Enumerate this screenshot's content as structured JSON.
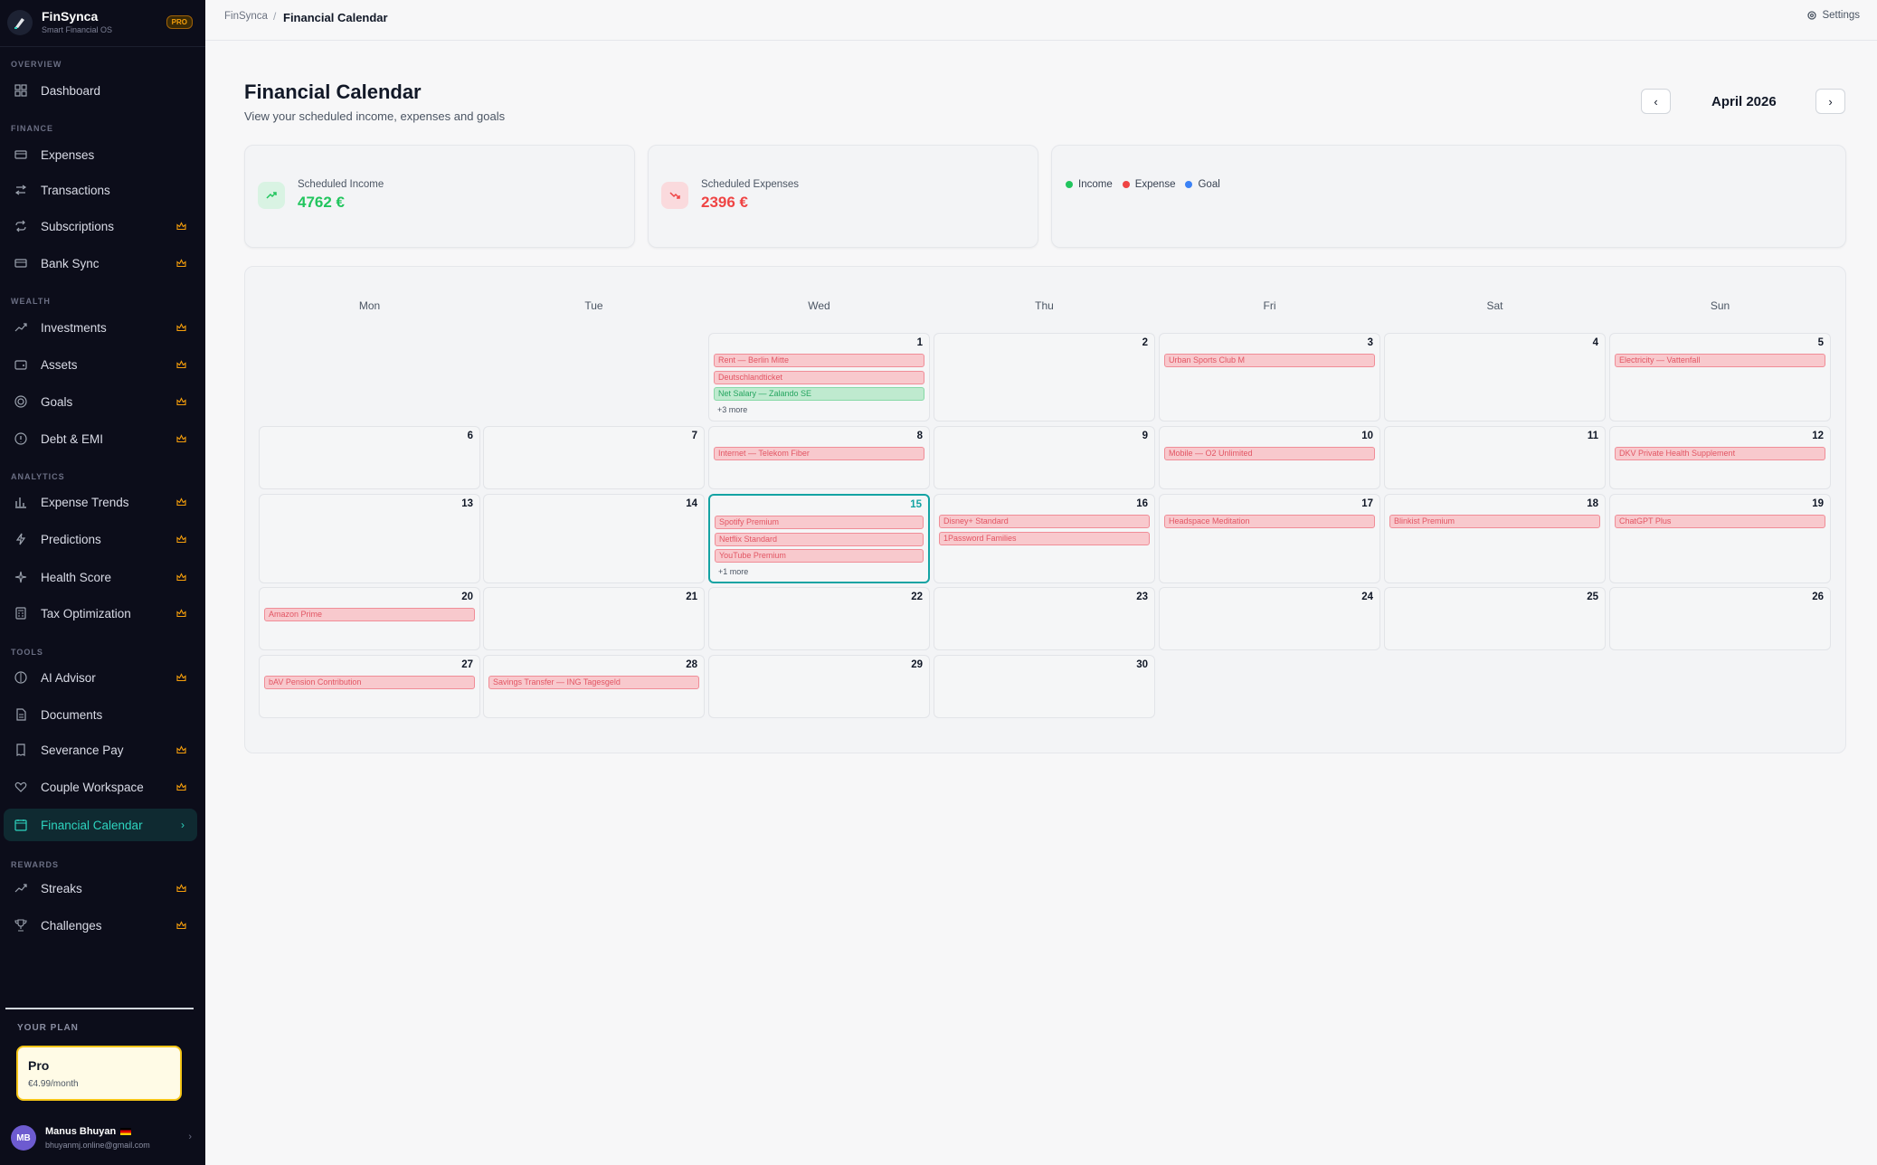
{
  "brand": {
    "name": "FinSynca",
    "tagline": "Smart Financial OS",
    "badge": "PRO"
  },
  "sidebar": {
    "sections": {
      "overview": "OVERVIEW",
      "finance": "FINANCE",
      "wealth": "WEALTH",
      "analytics": "ANALYTICS",
      "tools": "TOOLS",
      "rewards": "REWARDS"
    },
    "items": [
      {
        "label": "Dashboard",
        "icon": "grid-icon",
        "pro": false
      },
      {
        "label": "Expenses",
        "icon": "card-icon",
        "pro": false
      },
      {
        "label": "Transactions",
        "icon": "transfer-icon",
        "pro": false
      },
      {
        "label": "Subscriptions",
        "icon": "repeat-icon",
        "pro": true
      },
      {
        "label": "Bank Sync",
        "icon": "bank-card-icon",
        "pro": true
      },
      {
        "label": "Investments",
        "icon": "trend-up-icon",
        "pro": true
      },
      {
        "label": "Assets",
        "icon": "wallet-icon",
        "pro": true
      },
      {
        "label": "Goals",
        "icon": "target-icon",
        "pro": true
      },
      {
        "label": "Debt & EMI",
        "icon": "alert-circle-icon",
        "pro": true
      },
      {
        "label": "Expense Trends",
        "icon": "bar-chart-icon",
        "pro": true
      },
      {
        "label": "Predictions",
        "icon": "bolt-icon",
        "pro": true
      },
      {
        "label": "Health Score",
        "icon": "sparkle-icon",
        "pro": true
      },
      {
        "label": "Tax Optimization",
        "icon": "calculator-icon",
        "pro": true
      },
      {
        "label": "AI Advisor",
        "icon": "brain-icon",
        "pro": true
      },
      {
        "label": "Documents",
        "icon": "document-icon",
        "pro": false
      },
      {
        "label": "Severance Pay",
        "icon": "receipt-icon",
        "pro": true
      },
      {
        "label": "Couple Workspace",
        "icon": "heart-icon",
        "pro": true
      },
      {
        "label": "Financial Calendar",
        "icon": "calendar-icon",
        "pro": false,
        "active": true
      },
      {
        "label": "Streaks",
        "icon": "trend-up-icon",
        "pro": true
      },
      {
        "label": "Challenges",
        "icon": "trophy-icon",
        "pro": true
      }
    ],
    "plan": {
      "label": "YOUR PLAN",
      "name": "Pro",
      "price": "€4.99/month"
    },
    "user": {
      "initials": "MB",
      "name": "Manus Bhuyan",
      "email": "bhuyanmj.online@gmail.com"
    }
  },
  "topbar": {
    "breadcrumb_root": "FinSynca",
    "breadcrumb_sep": "/",
    "breadcrumb_current": "Financial Calendar",
    "settings": "Settings"
  },
  "header": {
    "title": "Financial Calendar",
    "subtitle": "View your scheduled income, expenses and goals",
    "month": "April 2026"
  },
  "summary": {
    "income_label": "Scheduled Income",
    "income_value": "4762 €",
    "expense_label": "Scheduled Expenses",
    "expense_value": "2396 €",
    "legend": [
      {
        "label": "Income",
        "color": "#22c55e"
      },
      {
        "label": "Expense",
        "color": "#ef4444"
      },
      {
        "label": "Goal",
        "color": "#3b82f6"
      }
    ]
  },
  "calendar": {
    "weekdays": [
      "Mon",
      "Tue",
      "Wed",
      "Thu",
      "Fri",
      "Sat",
      "Sun"
    ],
    "today": 15,
    "days": [
      {
        "day": "1",
        "events": [
          {
            "label": "Rent — Berlin Mitte",
            "type": "expense"
          },
          {
            "label": "Deutschlandticket",
            "type": "expense"
          },
          {
            "label": "Net Salary — Zalando SE",
            "type": "income"
          }
        ],
        "more": "+3 more"
      },
      {
        "day": "2",
        "events": []
      },
      {
        "day": "3",
        "events": [
          {
            "label": "Urban Sports Club M",
            "type": "expense"
          }
        ]
      },
      {
        "day": "4",
        "events": []
      },
      {
        "day": "5",
        "events": [
          {
            "label": "Electricity — Vattenfall",
            "type": "expense"
          }
        ]
      },
      {
        "day": "6",
        "events": []
      },
      {
        "day": "7",
        "events": []
      },
      {
        "day": "8",
        "events": [
          {
            "label": "Internet — Telekom Fiber",
            "type": "expense"
          }
        ]
      },
      {
        "day": "9",
        "events": []
      },
      {
        "day": "10",
        "events": [
          {
            "label": "Mobile — O2 Unlimited",
            "type": "expense"
          }
        ]
      },
      {
        "day": "11",
        "events": []
      },
      {
        "day": "12",
        "events": [
          {
            "label": "DKV Private Health Supplement",
            "type": "expense"
          }
        ]
      },
      {
        "day": "13",
        "events": []
      },
      {
        "day": "14",
        "events": []
      },
      {
        "day": "15",
        "events": [
          {
            "label": "Spotify Premium",
            "type": "expense"
          },
          {
            "label": "Netflix Standard",
            "type": "expense"
          },
          {
            "label": "YouTube Premium",
            "type": "expense"
          }
        ],
        "more": "+1 more"
      },
      {
        "day": "16",
        "events": [
          {
            "label": "Disney+ Standard",
            "type": "expense"
          },
          {
            "label": "1Password Families",
            "type": "expense"
          }
        ]
      },
      {
        "day": "17",
        "events": [
          {
            "label": "Headspace Meditation",
            "type": "expense"
          }
        ]
      },
      {
        "day": "18",
        "events": [
          {
            "label": "Blinkist Premium",
            "type": "expense"
          }
        ]
      },
      {
        "day": "19",
        "events": [
          {
            "label": "ChatGPT Plus",
            "type": "expense"
          }
        ]
      },
      {
        "day": "20",
        "events": [
          {
            "label": "Amazon Prime",
            "type": "expense"
          }
        ]
      },
      {
        "day": "21",
        "events": []
      },
      {
        "day": "22",
        "events": []
      },
      {
        "day": "23",
        "events": []
      },
      {
        "day": "24",
        "events": []
      },
      {
        "day": "25",
        "events": []
      },
      {
        "day": "26",
        "events": []
      },
      {
        "day": "27",
        "events": [
          {
            "label": "bAV Pension Contribution",
            "type": "expense"
          }
        ]
      },
      {
        "day": "28",
        "events": [
          {
            "label": "Savings Transfer — ING Tagesgeld",
            "type": "expense"
          }
        ]
      },
      {
        "day": "29",
        "events": []
      },
      {
        "day": "30",
        "events": []
      }
    ]
  }
}
